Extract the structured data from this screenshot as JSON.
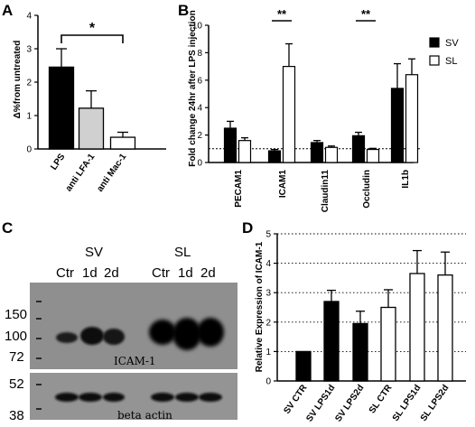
{
  "panels": {
    "A": "A",
    "B": "B",
    "C": "C",
    "D": "D"
  },
  "chart_data": [
    {
      "id": "A",
      "type": "bar",
      "title": "",
      "ylabel": "Δ%from untreated",
      "xlabel": "",
      "categories": [
        "LPS",
        "anti LFA-1",
        "anti Mac-1"
      ],
      "values": [
        2.45,
        1.22,
        0.35
      ],
      "errors": [
        0.55,
        0.52,
        0.15
      ],
      "colors": [
        "#000000",
        "#d0d0d0",
        "#ffffff"
      ],
      "ylim": [
        0,
        4
      ],
      "yticks": [
        "0",
        "1",
        "2",
        "3",
        "4"
      ],
      "significance": "*"
    },
    {
      "id": "B",
      "type": "bar",
      "title": "",
      "ylabel": "Fold change 24hr after LPS injection",
      "xlabel": "",
      "categories": [
        "PECAM1",
        "ICAM1",
        "Claudin11",
        "Occludin",
        "IL1b"
      ],
      "series": [
        {
          "name": "SV",
          "values": [
            2.5,
            0.85,
            1.45,
            1.95,
            5.4
          ],
          "errors": [
            0.5,
            0.1,
            0.15,
            0.25,
            1.8
          ],
          "color": "#000000"
        },
        {
          "name": "SL",
          "values": [
            1.6,
            7.0,
            1.1,
            0.95,
            6.4
          ],
          "errors": [
            0.2,
            1.65,
            0.1,
            0.08,
            1.15
          ],
          "color": "#ffffff"
        }
      ],
      "ylim": [
        0,
        10
      ],
      "yticks": [
        "0",
        "2",
        "4",
        "6",
        "8",
        "10"
      ],
      "reference_line": 1,
      "significance": [
        "**",
        "**"
      ]
    },
    {
      "id": "D",
      "type": "bar",
      "title": "",
      "ylabel": "Relative Expression of ICAM-1",
      "xlabel": "",
      "categories": [
        "SV CTR",
        "SV LPS1d",
        "SV LPS2d",
        "SL CTR",
        "SL LPS1d",
        "SL LPS2d"
      ],
      "values": [
        1.0,
        2.7,
        1.95,
        2.5,
        3.65,
        3.6
      ],
      "errors": [
        0,
        0.38,
        0.42,
        0.6,
        0.78,
        0.78
      ],
      "colors": [
        "#000000",
        "#000000",
        "#000000",
        "#ffffff",
        "#ffffff",
        "#ffffff"
      ],
      "ylim": [
        0,
        5
      ],
      "yticks": [
        "0",
        "1",
        "2",
        "3",
        "4",
        "5"
      ],
      "grid": "dotted horizontal"
    }
  ],
  "blot": {
    "group_sv": "SV",
    "group_sl": "SL",
    "lanes": [
      "Ctr",
      "1d",
      "2d",
      "Ctr",
      "1d",
      "2d"
    ],
    "markers": [
      "150",
      "100",
      "72",
      "52",
      "38"
    ],
    "icam_label": "ICAM-1",
    "actin_label": "beta actin"
  }
}
